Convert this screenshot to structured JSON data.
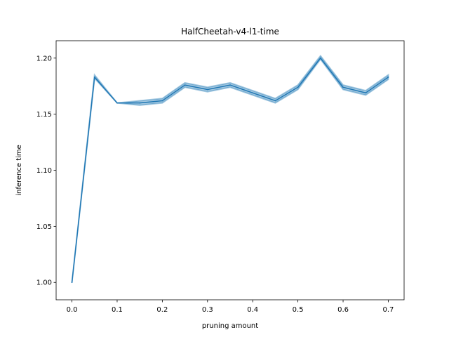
{
  "chart_data": {
    "type": "line",
    "title": "HalfCheetah-v4-l1-time",
    "xlabel": "pruning amount",
    "ylabel": "inference time",
    "xlim": [
      -0.035,
      0.735
    ],
    "ylim": [
      0.9845,
      1.2155
    ],
    "xticks": [
      0.0,
      0.1,
      0.2,
      0.3,
      0.4,
      0.5,
      0.6,
      0.7
    ],
    "xtick_labels": [
      "0.0",
      "0.1",
      "0.2",
      "0.3",
      "0.4",
      "0.5",
      "0.6",
      "0.7"
    ],
    "yticks": [
      1.0,
      1.05,
      1.1,
      1.15,
      1.2
    ],
    "ytick_labels": [
      "1.00",
      "1.05",
      "1.10",
      "1.15",
      "1.20"
    ],
    "grid": false,
    "legend": "none",
    "series": [
      {
        "color": "#1f77b4",
        "band_color": "#1f77b4",
        "x": [
          0.0,
          0.05,
          0.1,
          0.15,
          0.2,
          0.25,
          0.3,
          0.35,
          0.4,
          0.45,
          0.5,
          0.55,
          0.6,
          0.65,
          0.7
        ],
        "values": [
          1.0,
          1.183,
          1.16,
          1.16,
          1.162,
          1.176,
          1.172,
          1.176,
          1.169,
          1.162,
          1.174,
          1.2,
          1.174,
          1.169,
          1.183
        ],
        "lower": [
          1.0,
          1.182,
          1.16,
          1.158,
          1.16,
          1.174,
          1.17,
          1.174,
          1.167,
          1.16,
          1.172,
          1.199,
          1.172,
          1.167,
          1.181
        ],
        "upper": [
          1.0,
          1.185,
          1.16,
          1.162,
          1.164,
          1.178,
          1.174,
          1.178,
          1.171,
          1.164,
          1.176,
          1.202,
          1.176,
          1.171,
          1.185
        ]
      }
    ]
  }
}
